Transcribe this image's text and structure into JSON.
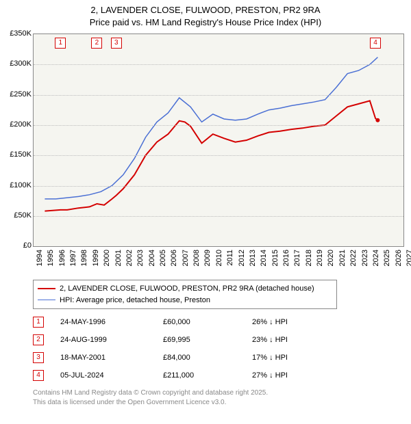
{
  "title": {
    "line1": "2, LAVENDER CLOSE, FULWOOD, PRESTON, PR2 9RA",
    "line2": "Price paid vs. HM Land Registry's House Price Index (HPI)",
    "fontsize": 13,
    "color": "#000000"
  },
  "chart": {
    "type": "line",
    "background_color": "#f5f5f0",
    "border_color": "#888888",
    "grid_color": "#bbbbbb",
    "x": {
      "lim": [
        1994,
        2027
      ],
      "ticks": [
        1994,
        1995,
        1996,
        1997,
        1998,
        1999,
        2000,
        2001,
        2002,
        2003,
        2004,
        2005,
        2006,
        2007,
        2008,
        2009,
        2010,
        2011,
        2012,
        2013,
        2014,
        2015,
        2016,
        2017,
        2018,
        2019,
        2020,
        2021,
        2022,
        2023,
        2024,
        2025,
        2026,
        2027
      ]
    },
    "y": {
      "lim": [
        0,
        350000
      ],
      "ticks": [
        0,
        50000,
        100000,
        150000,
        200000,
        250000,
        300000,
        350000
      ],
      "tick_labels": [
        "£0",
        "£50K",
        "£100K",
        "£150K",
        "£200K",
        "£250K",
        "£300K",
        "£350K"
      ],
      "fontsize": 11
    },
    "series": [
      {
        "name": "2, LAVENDER CLOSE, FULWOOD, PRESTON, PR2 9RA (detached house)",
        "color": "#d40000",
        "line_width": 2,
        "points": [
          [
            1995.0,
            58000
          ],
          [
            1996.4,
            60000
          ],
          [
            1997.0,
            60000
          ],
          [
            1998.0,
            63000
          ],
          [
            1999.0,
            65000
          ],
          [
            1999.65,
            69995
          ],
          [
            2000.3,
            68000
          ],
          [
            2001.0,
            78000
          ],
          [
            2001.38,
            84000
          ],
          [
            2002.0,
            95000
          ],
          [
            2003.0,
            118000
          ],
          [
            2004.0,
            150000
          ],
          [
            2005.0,
            172000
          ],
          [
            2006.0,
            185000
          ],
          [
            2007.0,
            207000
          ],
          [
            2007.5,
            205000
          ],
          [
            2008.0,
            198000
          ],
          [
            2009.0,
            170000
          ],
          [
            2010.0,
            185000
          ],
          [
            2011.0,
            178000
          ],
          [
            2012.0,
            172000
          ],
          [
            2013.0,
            175000
          ],
          [
            2014.0,
            182000
          ],
          [
            2015.0,
            188000
          ],
          [
            2016.0,
            190000
          ],
          [
            2017.0,
            193000
          ],
          [
            2018.0,
            195000
          ],
          [
            2019.0,
            198000
          ],
          [
            2020.0,
            200000
          ],
          [
            2021.0,
            215000
          ],
          [
            2022.0,
            230000
          ],
          [
            2023.0,
            235000
          ],
          [
            2024.0,
            240000
          ],
          [
            2024.5,
            211000
          ],
          [
            2024.7,
            208000
          ]
        ]
      },
      {
        "name": "HPI: Average price, detached house, Preston",
        "color": "#4a6fd4",
        "line_width": 1.5,
        "points": [
          [
            1995.0,
            78000
          ],
          [
            1996.0,
            78000
          ],
          [
            1997.0,
            80000
          ],
          [
            1998.0,
            82000
          ],
          [
            1999.0,
            85000
          ],
          [
            2000.0,
            90000
          ],
          [
            2001.0,
            100000
          ],
          [
            2002.0,
            118000
          ],
          [
            2003.0,
            145000
          ],
          [
            2004.0,
            180000
          ],
          [
            2005.0,
            205000
          ],
          [
            2006.0,
            220000
          ],
          [
            2007.0,
            245000
          ],
          [
            2008.0,
            230000
          ],
          [
            2009.0,
            205000
          ],
          [
            2010.0,
            218000
          ],
          [
            2011.0,
            210000
          ],
          [
            2012.0,
            208000
          ],
          [
            2013.0,
            210000
          ],
          [
            2014.0,
            218000
          ],
          [
            2015.0,
            225000
          ],
          [
            2016.0,
            228000
          ],
          [
            2017.0,
            232000
          ],
          [
            2018.0,
            235000
          ],
          [
            2019.0,
            238000
          ],
          [
            2020.0,
            242000
          ],
          [
            2021.0,
            262000
          ],
          [
            2022.0,
            285000
          ],
          [
            2023.0,
            290000
          ],
          [
            2024.0,
            300000
          ],
          [
            2024.7,
            312000
          ]
        ]
      }
    ],
    "sale_markers": [
      {
        "n": "1",
        "x": 1996.4,
        "color": "#d40000"
      },
      {
        "n": "2",
        "x": 1999.65,
        "color": "#d40000"
      },
      {
        "n": "3",
        "x": 2001.38,
        "color": "#d40000"
      },
      {
        "n": "4",
        "x": 2024.5,
        "color": "#d40000"
      }
    ]
  },
  "legend": {
    "items": [
      {
        "color": "#d40000",
        "width": 2,
        "label": "2, LAVENDER CLOSE, FULWOOD, PRESTON, PR2 9RA (detached house)"
      },
      {
        "color": "#4a6fd4",
        "width": 1.5,
        "label": "HPI: Average price, detached house, Preston"
      }
    ]
  },
  "sales_table": {
    "marker_color": "#d40000",
    "rows": [
      {
        "n": "1",
        "date": "24-MAY-1996",
        "price": "£60,000",
        "delta": "26% ↓ HPI"
      },
      {
        "n": "2",
        "date": "24-AUG-1999",
        "price": "£69,995",
        "delta": "23% ↓ HPI"
      },
      {
        "n": "3",
        "date": "18-MAY-2001",
        "price": "£84,000",
        "delta": "17% ↓ HPI"
      },
      {
        "n": "4",
        "date": "05-JUL-2024",
        "price": "£211,000",
        "delta": "27% ↓ HPI"
      }
    ]
  },
  "footer": {
    "line1": "Contains HM Land Registry data © Crown copyright and database right 2025.",
    "line2": "This data is licensed under the Open Government Licence v3.0.",
    "color": "#888888"
  }
}
